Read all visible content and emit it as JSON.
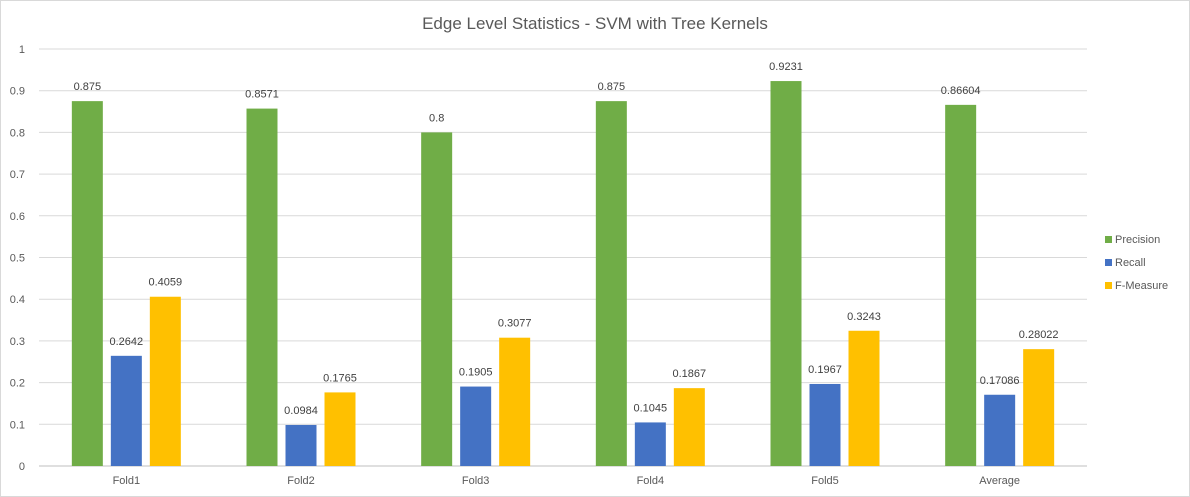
{
  "chart_data": {
    "type": "bar",
    "title": "Edge Level Statistics - SVM with Tree Kernels",
    "xlabel": "",
    "ylabel": "",
    "categories": [
      "Fold1",
      "Fold2",
      "Fold3",
      "Fold4",
      "Fold5",
      "Average"
    ],
    "series": [
      {
        "name": "Precision",
        "color": "#70ad47",
        "values": [
          0.875,
          0.8571,
          0.8,
          0.875,
          0.9231,
          0.86604
        ],
        "labels": [
          "0.875",
          "0.8571",
          "0.8",
          "0.875",
          "0.9231",
          "0.86604"
        ]
      },
      {
        "name": "Recall",
        "color": "#4472c4",
        "values": [
          0.2642,
          0.0984,
          0.1905,
          0.1045,
          0.1967,
          0.17086
        ],
        "labels": [
          "0.2642",
          "0.0984",
          "0.1905",
          "0.1045",
          "0.1967",
          "0.17086"
        ]
      },
      {
        "name": "F-Measure",
        "color": "#ffc000",
        "values": [
          0.4059,
          0.1765,
          0.3077,
          0.1867,
          0.3243,
          0.28022
        ],
        "labels": [
          "0.4059",
          "0.1765",
          "0.3077",
          "0.1867",
          "0.3243",
          "0.28022"
        ]
      }
    ],
    "ylim": [
      0,
      1
    ],
    "yticks": [
      "0",
      "0.1",
      "0.2",
      "0.3",
      "0.4",
      "0.5",
      "0.6",
      "0.7",
      "0.8",
      "0.9",
      "1"
    ],
    "grid": true,
    "legend_position": "right"
  }
}
